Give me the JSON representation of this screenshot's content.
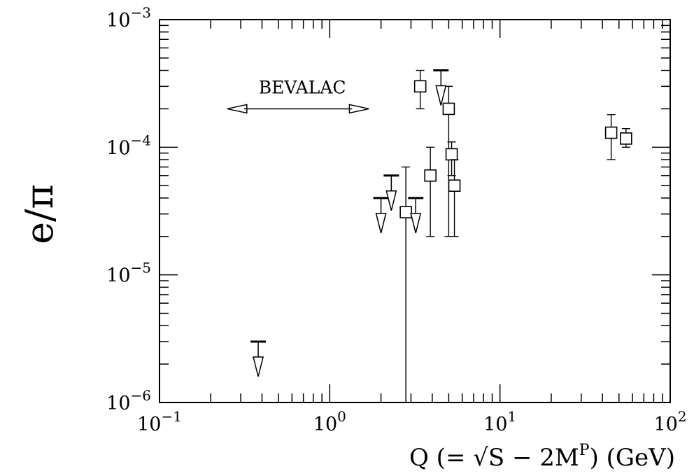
{
  "chart_data": {
    "type": "scatter",
    "x_scale": "log",
    "y_scale": "log",
    "xlim": [
      0.1,
      100
    ],
    "ylim": [
      1e-06,
      0.001
    ],
    "x_ticks": [
      {
        "value": 0.1,
        "base": "10",
        "exp": "−1"
      },
      {
        "value": 1,
        "base": "10",
        "exp": "0"
      },
      {
        "value": 10,
        "base": "10",
        "exp": "1"
      },
      {
        "value": 100,
        "base": "10",
        "exp": "2"
      }
    ],
    "y_ticks": [
      {
        "value": 1e-06,
        "base": "10",
        "exp": "−6"
      },
      {
        "value": 1e-05,
        "base": "10",
        "exp": "−5"
      },
      {
        "value": 0.0001,
        "base": "10",
        "exp": "−4"
      },
      {
        "value": 0.001,
        "base": "10",
        "exp": "−3"
      }
    ],
    "ylabel": "e/π",
    "xlabel": {
      "part1": "Q (= √S − 2M",
      "sup": "P",
      "part2": ") (GeV)"
    },
    "annotation": {
      "text": "BEVALAC",
      "x_range": [
        0.25,
        1.7
      ],
      "y": 0.0002
    },
    "measurements": [
      {
        "x": 2.8,
        "y": 3.1e-05,
        "y_low": 1e-06,
        "y_high": 7e-05
      },
      {
        "x": 3.4,
        "y": 0.0003,
        "y_low": 0.0002,
        "y_high": 0.0004
      },
      {
        "x": 3.9,
        "y": 6e-05,
        "y_low": 2e-05,
        "y_high": 0.0001
      },
      {
        "x": 5.0,
        "y": 0.0002,
        "y_low": 2e-05,
        "y_high": 0.0003
      },
      {
        "x": 5.2,
        "y": 8.8e-05,
        "y_low": 6e-05,
        "y_high": 0.00011
      },
      {
        "x": 5.4,
        "y": 5e-05,
        "y_low": 2e-05,
        "y_high": 8e-05
      },
      {
        "x": 45,
        "y": 0.00013,
        "y_low": 8e-05,
        "y_high": 0.00018
      },
      {
        "x": 55,
        "y": 0.000117,
        "y_low": 0.0001,
        "y_high": 0.00014
      }
    ],
    "upper_limits": [
      {
        "x": 0.38,
        "y": 3e-06
      },
      {
        "x": 2.0,
        "y": 4e-05
      },
      {
        "x": 2.3,
        "y": 6e-05
      },
      {
        "x": 3.2,
        "y": 4e-05
      },
      {
        "x": 4.5,
        "y": 0.0004
      }
    ],
    "grid": false,
    "legend": "none"
  }
}
